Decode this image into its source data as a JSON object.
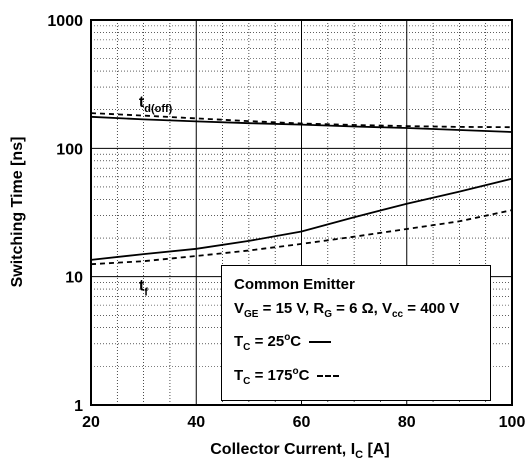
{
  "chart_data": {
    "type": "line",
    "xlabel": "Collector Current, I",
    "xlabel_sub": "C",
    "xlabel_unit": " [A]",
    "ylabel": "Switching Time [ns]",
    "xlim": [
      20,
      100
    ],
    "ylim": [
      1,
      1000
    ],
    "yscale": "log",
    "x_ticks": [
      "20",
      "40",
      "60",
      "80",
      "100"
    ],
    "y_ticks": [
      "1",
      "10",
      "100",
      "1000"
    ],
    "grid": true,
    "series": [
      {
        "name": "td(off) 25°C",
        "style": "solid",
        "x": [
          20,
          30,
          40,
          50,
          60,
          70,
          80,
          90,
          100
        ],
        "y": [
          176,
          168,
          162,
          157,
          153,
          148,
          144,
          139,
          134
        ]
      },
      {
        "name": "td(off) 175°C",
        "style": "dashed",
        "x": [
          20,
          30,
          40,
          50,
          60,
          70,
          80,
          90,
          100
        ],
        "y": [
          188,
          180,
          171,
          163,
          156,
          152,
          149,
          147,
          146
        ]
      },
      {
        "name": "tf 25°C",
        "style": "solid",
        "x": [
          20,
          30,
          40,
          50,
          60,
          70,
          80,
          90,
          100
        ],
        "y": [
          13.5,
          15,
          16.5,
          19,
          22.5,
          29,
          37,
          46,
          58
        ]
      },
      {
        "name": "tf 175°C",
        "style": "dashed",
        "x": [
          20,
          30,
          40,
          50,
          60,
          70,
          80,
          90,
          100
        ],
        "y": [
          12.5,
          13.2,
          14.5,
          16,
          18,
          20.5,
          23.5,
          27,
          33
        ]
      }
    ],
    "annotations": [
      {
        "main": "t",
        "sub": "d(off)",
        "x": 21.5,
        "y": 230
      },
      {
        "main": "t",
        "sub": "f",
        "x": 21.5,
        "y": 8.5
      }
    ]
  },
  "legend": {
    "title": "Common Emitter",
    "conditions": {
      "v": "V",
      "v_sub": "GE",
      "v_val": " = 15 V, R",
      "r_sub": "G",
      "r_val": " = 6 Ω, V",
      "vcc_sub": "cc",
      "vcc_val": " = 400 V"
    },
    "solid": {
      "t": "T",
      "sub": "C",
      "val": " = 25",
      "sup": "o",
      "unit": "C"
    },
    "dashed": {
      "t": "T",
      "sub": "C",
      "val": " = 175",
      "sup": "o",
      "unit": "C"
    }
  }
}
